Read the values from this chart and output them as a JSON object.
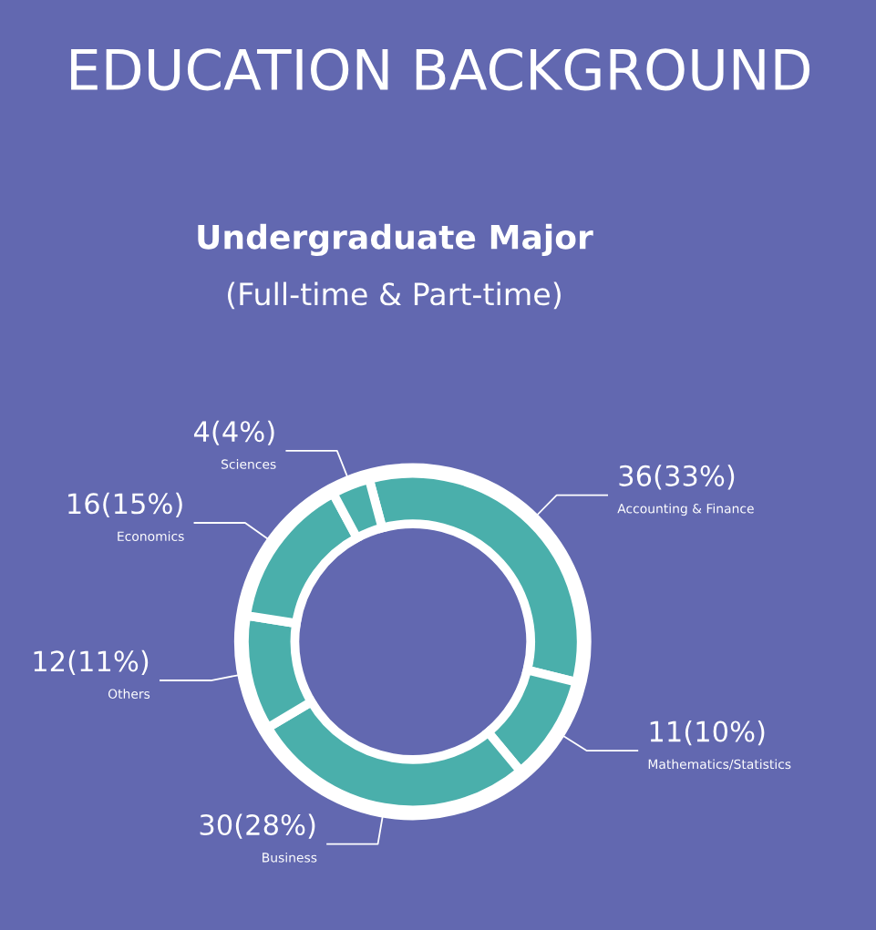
{
  "chart_data": {
    "type": "donut",
    "title": "Undergraduate Major",
    "subtitle": "(Full-time & Part-time)",
    "annotations": [
      "EDUCATION BACKGROUND"
    ],
    "categories": [
      "Accounting & Finance",
      "Mathematics/Statistics",
      "Business",
      "Others",
      "Economics",
      "Sciences"
    ],
    "values": [
      36,
      11,
      30,
      12,
      16,
      4
    ],
    "value_labels": [
      "36(33%)",
      "11(10%)",
      "30(28%)",
      "12(11%)",
      "16(15%)",
      "4(4%)"
    ],
    "colors": [
      "#4aafab",
      "#4aafab",
      "#4aafab",
      "#4aafab",
      "#4aafab",
      "#4aafab"
    ]
  }
}
